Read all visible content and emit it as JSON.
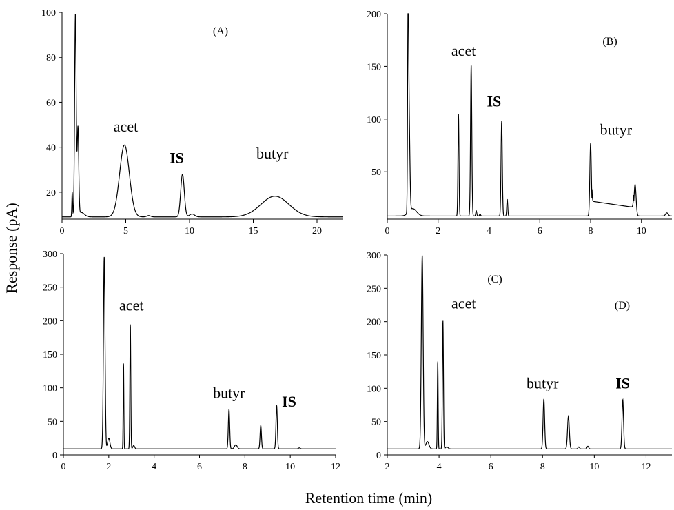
{
  "figure": {
    "ylabel": "Response (pA)",
    "xlabel": "Retention time (min)"
  },
  "chart_data": [
    {
      "type": "line",
      "panel": "(A)",
      "xlim": [
        0,
        22
      ],
      "ylim": [
        8,
        100
      ],
      "x_ticks": [
        0,
        5,
        10,
        15,
        20
      ],
      "y_ticks": [
        20,
        40,
        60,
        80,
        100
      ],
      "baseline": 9,
      "peaks": [
        {
          "x": 0.8,
          "height": 20,
          "width": 0.03
        },
        {
          "x": 1.05,
          "height": 99,
          "width": 0.06
        },
        {
          "x": 1.25,
          "height": 48,
          "width": 0.06
        },
        {
          "x": 1.5,
          "height": 11,
          "width": 0.25
        },
        {
          "x": 4.9,
          "height": 41,
          "width": 0.38
        },
        {
          "x": 6.8,
          "height": 9.6,
          "width": 0.15
        },
        {
          "x": 9.45,
          "height": 28,
          "width": 0.14
        },
        {
          "x": 10.2,
          "height": 10.3,
          "width": 0.2
        },
        {
          "x": 16.7,
          "height": 18.2,
          "width": 1.1
        }
      ],
      "annotations": [
        {
          "text": "acet",
          "x": 5.0,
          "y": 47,
          "bold": false
        },
        {
          "text": "IS",
          "x": 9.0,
          "y": 33,
          "bold": true
        },
        {
          "text": "butyr",
          "x": 16.5,
          "y": 35,
          "bold": false
        }
      ]
    },
    {
      "type": "line",
      "panel": "(B)",
      "xlim": [
        0,
        11.2
      ],
      "ylim": [
        5,
        200
      ],
      "x_ticks": [
        0,
        2,
        4,
        6,
        8,
        10
      ],
      "y_ticks": [
        50,
        100,
        150,
        200
      ],
      "baseline": 8,
      "peaks": [
        {
          "x": 0.82,
          "height": 200,
          "width": 0.02
        },
        {
          "x": 0.86,
          "height": 90,
          "width": 0.03
        },
        {
          "x": 1.0,
          "height": 15,
          "width": 0.15
        },
        {
          "x": 2.8,
          "height": 105,
          "width": 0.02
        },
        {
          "x": 3.3,
          "height": 152,
          "width": 0.025
        },
        {
          "x": 3.5,
          "height": 13,
          "width": 0.02
        },
        {
          "x": 3.65,
          "height": 10,
          "width": 0.02
        },
        {
          "x": 4.5,
          "height": 98,
          "width": 0.025
        },
        {
          "x": 4.72,
          "height": 24,
          "width": 0.02
        },
        {
          "x": 8.0,
          "height": 77,
          "width": 0.03
        },
        {
          "x": 9.75,
          "height": 38,
          "width": 0.04
        },
        {
          "x": 11.0,
          "height": 11,
          "width": 0.05
        }
      ],
      "annotations": [
        {
          "text": "acet",
          "x": 3.0,
          "y": 160,
          "bold": false
        },
        {
          "text": "IS",
          "x": 4.2,
          "y": 112,
          "bold": true
        },
        {
          "text": "butyr",
          "x": 9.0,
          "y": 85,
          "bold": false
        }
      ]
    },
    {
      "type": "line",
      "panel": "(C)",
      "xlim": [
        0,
        12
      ],
      "ylim": [
        0,
        300
      ],
      "x_ticks": [
        0,
        2,
        4,
        6,
        8,
        10,
        12
      ],
      "y_ticks": [
        0,
        50,
        100,
        150,
        200,
        250,
        300
      ],
      "baseline": 9,
      "peaks": [
        {
          "x": 1.8,
          "height": 295,
          "width": 0.035
        },
        {
          "x": 2.0,
          "height": 25,
          "width": 0.05
        },
        {
          "x": 2.65,
          "height": 138,
          "width": 0.015
        },
        {
          "x": 2.95,
          "height": 196,
          "width": 0.02
        },
        {
          "x": 3.1,
          "height": 14,
          "width": 0.04
        },
        {
          "x": 7.3,
          "height": 68,
          "width": 0.03
        },
        {
          "x": 7.6,
          "height": 15,
          "width": 0.06
        },
        {
          "x": 8.7,
          "height": 44,
          "width": 0.03
        },
        {
          "x": 9.4,
          "height": 74,
          "width": 0.03
        },
        {
          "x": 10.4,
          "height": 10.5,
          "width": 0.04
        }
      ],
      "annotations": [
        {
          "text": "acet",
          "x": 3.0,
          "y": 215,
          "bold": false
        },
        {
          "text": "butyr",
          "x": 7.3,
          "y": 85,
          "bold": false
        },
        {
          "text": "IS",
          "x": 9.95,
          "y": 72,
          "bold": true
        }
      ]
    },
    {
      "type": "line",
      "panel": "(D)",
      "xlim": [
        2,
        13
      ],
      "ylim": [
        0,
        300
      ],
      "x_ticks": [
        2,
        4,
        6,
        8,
        10,
        12
      ],
      "y_ticks": [
        0,
        50,
        100,
        150,
        200,
        250,
        300
      ],
      "baseline": 9,
      "peaks": [
        {
          "x": 3.35,
          "height": 300,
          "width": 0.035
        },
        {
          "x": 3.55,
          "height": 20,
          "width": 0.06
        },
        {
          "x": 3.95,
          "height": 142,
          "width": 0.015
        },
        {
          "x": 4.15,
          "height": 202,
          "width": 0.02
        },
        {
          "x": 4.3,
          "height": 12,
          "width": 0.05
        },
        {
          "x": 8.05,
          "height": 84,
          "width": 0.03
        },
        {
          "x": 9.0,
          "height": 58,
          "width": 0.035
        },
        {
          "x": 9.4,
          "height": 12,
          "width": 0.03
        },
        {
          "x": 9.75,
          "height": 13,
          "width": 0.03
        },
        {
          "x": 11.1,
          "height": 83,
          "width": 0.03
        }
      ],
      "annotations": [
        {
          "text": "acet",
          "x": 4.95,
          "y": 220,
          "bold": false
        },
        {
          "text": "butyr",
          "x": 8.0,
          "y": 100,
          "bold": false
        },
        {
          "text": "IS",
          "x": 11.1,
          "y": 100,
          "bold": true
        }
      ]
    }
  ]
}
